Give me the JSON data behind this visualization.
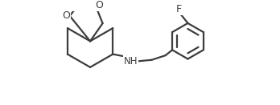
{
  "background": "#ffffff",
  "line_color": "#3d3d3d",
  "line_width": 1.6,
  "font_size": 8.5,
  "fig_width": 3.48,
  "fig_height": 1.31,
  "dpi": 100,
  "xlim": [
    0,
    10
  ],
  "ylim": [
    0,
    3.76
  ]
}
